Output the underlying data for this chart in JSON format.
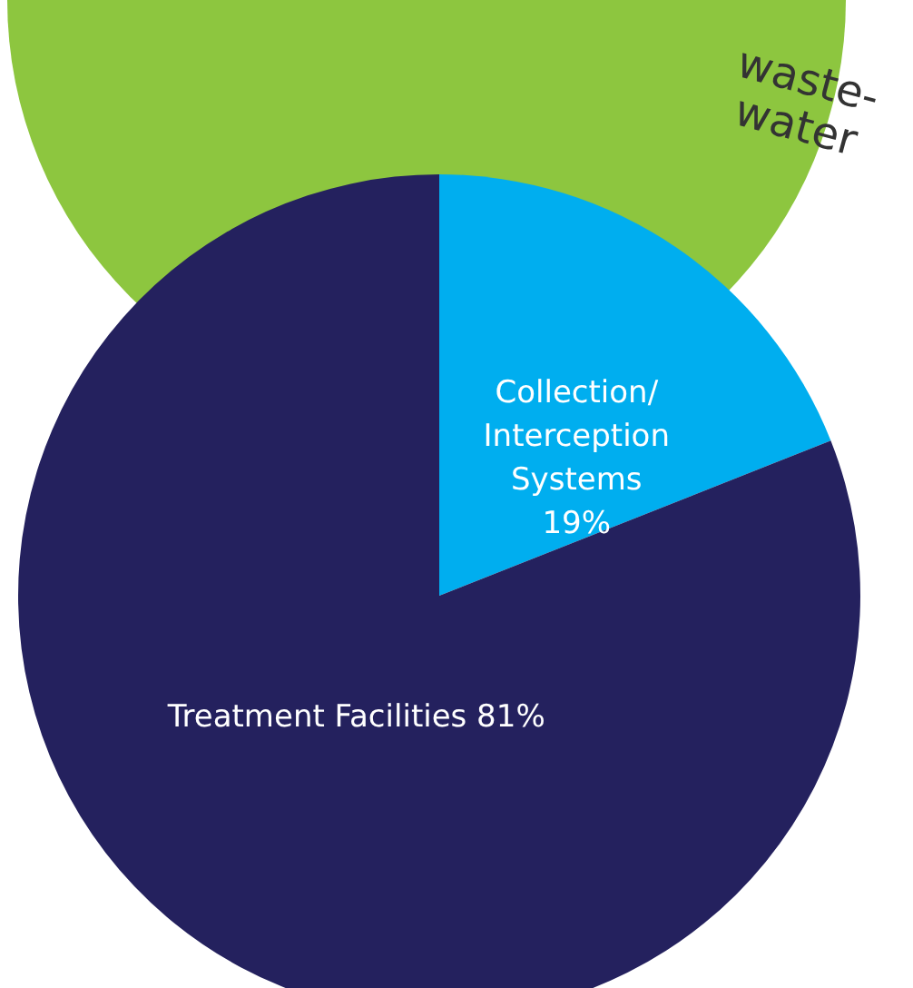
{
  "chart_data": {
    "type": "pie",
    "categories": [
      "Collection/ Interception Systems",
      "Treatment Facilities"
    ],
    "values": [
      19,
      81
    ],
    "colors": [
      "#00aeef",
      "#24215e"
    ],
    "value_labels": [
      "19%",
      "81%"
    ],
    "annotations": [
      "waste-\nwater"
    ]
  }
}
